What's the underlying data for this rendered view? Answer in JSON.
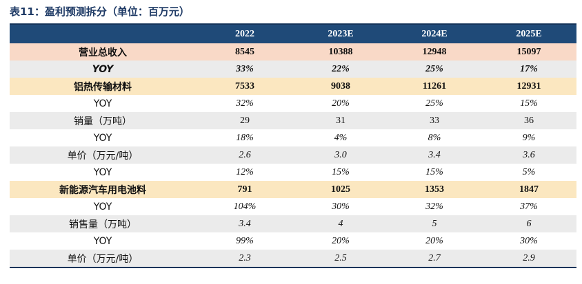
{
  "caption": "表11：盈利预测拆分（单位：百万元）",
  "header": [
    "",
    "2022",
    "2023E",
    "2024E",
    "2025E"
  ],
  "rows": [
    {
      "style": "peach",
      "italic": false,
      "cells": [
        "营业总收入",
        "8545",
        "10388",
        "12948",
        "15097"
      ]
    },
    {
      "style": "yoybold",
      "italic": true,
      "cells": [
        "YOY",
        "33%",
        "22%",
        "25%",
        "17%"
      ]
    },
    {
      "style": "yellow",
      "italic": false,
      "cells": [
        "铝热传输材料",
        "7533",
        "9038",
        "11261",
        "12931"
      ]
    },
    {
      "style": "plain",
      "italic": true,
      "cells": [
        "YOY",
        "32%",
        "20%",
        "25%",
        "15%"
      ]
    },
    {
      "style": "gray",
      "italic": false,
      "cells": [
        "销量（万吨）",
        "29",
        "31",
        "33",
        "36"
      ]
    },
    {
      "style": "plain",
      "italic": true,
      "cells": [
        "YOY",
        "18%",
        "4%",
        "8%",
        "9%"
      ]
    },
    {
      "style": "gray",
      "italic": true,
      "cells": [
        "单价（万元/吨）",
        "2.6",
        "3.0",
        "3.4",
        "3.6"
      ]
    },
    {
      "style": "plain",
      "italic": true,
      "cells": [
        "YOY",
        "12%",
        "15%",
        "15%",
        "5%"
      ]
    },
    {
      "style": "yellow",
      "italic": false,
      "cells": [
        "新能源汽车用电池料",
        "791",
        "1025",
        "1353",
        "1847"
      ]
    },
    {
      "style": "plain",
      "italic": true,
      "cells": [
        "YOY",
        "104%",
        "30%",
        "32%",
        "37%"
      ]
    },
    {
      "style": "gray",
      "italic": true,
      "cells": [
        "销售量（万吨）",
        "3.4",
        "4",
        "5",
        "6"
      ]
    },
    {
      "style": "plain",
      "italic": true,
      "cells": [
        "YOY",
        "99%",
        "20%",
        "20%",
        "30%"
      ]
    },
    {
      "style": "gray",
      "italic": true,
      "cells": [
        "单价（万元/吨）",
        "2.3",
        "2.5",
        "2.7",
        "2.9"
      ]
    }
  ]
}
